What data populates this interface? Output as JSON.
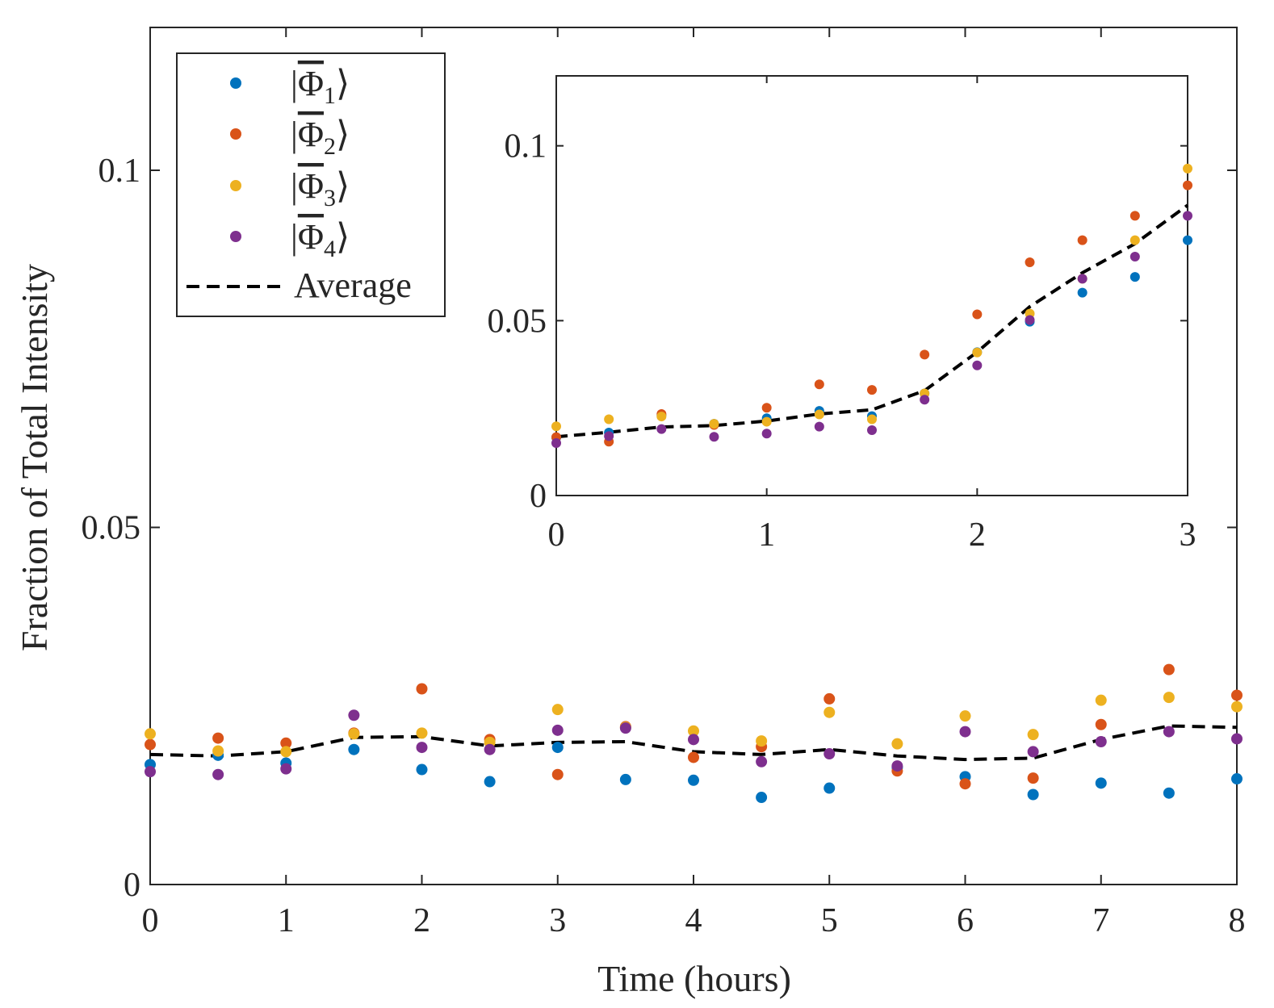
{
  "colors": {
    "phi1": "#0072BD",
    "phi2": "#D95319",
    "phi3": "#EDB120",
    "phi4": "#7E2F8E",
    "average": "#000000",
    "axis": "#262626"
  },
  "legend": {
    "labels": [
      "|Φ̅₁⟩",
      "|Φ̅₂⟩",
      "|Φ̅₃⟩",
      "|Φ̅₄⟩",
      "Average"
    ],
    "phi_symbol": "Φ",
    "subscripts": [
      "1",
      "2",
      "3",
      "4"
    ],
    "average_label": "Average"
  },
  "chart_data": [
    {
      "id": "main",
      "type": "scatter",
      "title": "",
      "xlabel": "Time (hours)",
      "ylabel": "Fraction of Total Intensity",
      "xlim": [
        0,
        8
      ],
      "ylim": [
        0,
        0.12
      ],
      "xticks": [
        0,
        1,
        2,
        3,
        4,
        5,
        6,
        7,
        8
      ],
      "xtick_labels": [
        "0",
        "1",
        "2",
        "3",
        "4",
        "5",
        "6",
        "7",
        "8"
      ],
      "yticks": [
        0,
        0.05,
        0.1
      ],
      "ytick_labels": [
        "0",
        "0.05",
        "0.1"
      ],
      "x": [
        0,
        0.5,
        1,
        1.5,
        2,
        2.5,
        3,
        3.5,
        4,
        4.5,
        5,
        5.5,
        6,
        6.5,
        7,
        7.5,
        8
      ],
      "series": [
        {
          "name": "Φ1",
          "key": "phi1",
          "values": [
            0.0168,
            0.0181,
            0.017,
            0.0189,
            0.0161,
            0.0144,
            0.0192,
            0.0147,
            0.0146,
            0.0122,
            0.0135,
            0.0164,
            0.0151,
            0.0126,
            0.0142,
            0.0128,
            0.0148
          ]
        },
        {
          "name": "Φ2",
          "key": "phi2",
          "values": [
            0.0196,
            0.0205,
            0.0198,
            0.0212,
            0.0274,
            0.0203,
            0.0154,
            0.0221,
            0.0178,
            0.0193,
            0.026,
            0.0159,
            0.0141,
            0.0149,
            0.0224,
            0.0301,
            0.0265
          ]
        },
        {
          "name": "Φ3",
          "key": "phi3",
          "values": [
            0.0211,
            0.0187,
            0.0186,
            0.0211,
            0.0212,
            0.0199,
            0.0245,
            0.022,
            0.0215,
            0.0201,
            0.0241,
            0.0197,
            0.0236,
            0.021,
            0.0258,
            0.0262,
            0.0249
          ]
        },
        {
          "name": "Φ4",
          "key": "phi4",
          "values": [
            0.0158,
            0.0154,
            0.0162,
            0.0237,
            0.0192,
            0.0189,
            0.0216,
            0.0219,
            0.0203,
            0.0172,
            0.0183,
            0.0166,
            0.0214,
            0.0186,
            0.02,
            0.0214,
            0.0204
          ]
        },
        {
          "name": "Average",
          "key": "average",
          "style": "dashed",
          "values": [
            0.0182,
            0.018,
            0.0186,
            0.0206,
            0.0207,
            0.0194,
            0.0199,
            0.02,
            0.0186,
            0.0182,
            0.0189,
            0.018,
            0.0175,
            0.0177,
            0.0203,
            0.0222,
            0.022
          ]
        }
      ]
    },
    {
      "id": "inset",
      "type": "scatter",
      "title": "",
      "xlabel": "",
      "ylabel": "",
      "xlim": [
        0,
        3
      ],
      "ylim": [
        0,
        0.12
      ],
      "xticks": [
        0,
        1,
        2,
        3
      ],
      "xtick_labels": [
        "0",
        "1",
        "2",
        "3"
      ],
      "yticks": [
        0,
        0.05,
        0.1
      ],
      "ytick_labels": [
        "0",
        "0.05",
        "0.1"
      ],
      "x": [
        0,
        0.25,
        0.5,
        0.75,
        1,
        1.25,
        1.5,
        1.75,
        2,
        2.25,
        2.5,
        2.75,
        3
      ],
      "series": [
        {
          "name": "Φ1",
          "key": "phi1",
          "values": [
            0.0166,
            0.018,
            0.0229,
            0.0205,
            0.0221,
            0.0242,
            0.0227,
            0.0292,
            0.041,
            0.0497,
            0.058,
            0.0625,
            0.073
          ]
        },
        {
          "name": "Φ2",
          "key": "phi2",
          "values": [
            0.0167,
            0.0154,
            0.0233,
            0.0202,
            0.0251,
            0.0318,
            0.0302,
            0.0403,
            0.0518,
            0.0667,
            0.073,
            0.08,
            0.0887
          ]
        },
        {
          "name": "Φ3",
          "key": "phi3",
          "values": [
            0.0198,
            0.0218,
            0.0226,
            0.0205,
            0.0211,
            0.0232,
            0.0218,
            0.0292,
            0.0409,
            0.052,
            0.062,
            0.073,
            0.0935
          ]
        },
        {
          "name": "Φ4",
          "key": "phi4",
          "values": [
            0.015,
            0.017,
            0.019,
            0.0168,
            0.0177,
            0.0197,
            0.0187,
            0.0274,
            0.0372,
            0.0502,
            0.062,
            0.0683,
            0.08
          ]
        },
        {
          "name": "Average",
          "key": "average",
          "style": "dashed",
          "values": [
            0.0168,
            0.0181,
            0.0196,
            0.02,
            0.0213,
            0.0233,
            0.0245,
            0.03,
            0.041,
            0.054,
            0.0637,
            0.072,
            0.083
          ]
        }
      ]
    }
  ]
}
